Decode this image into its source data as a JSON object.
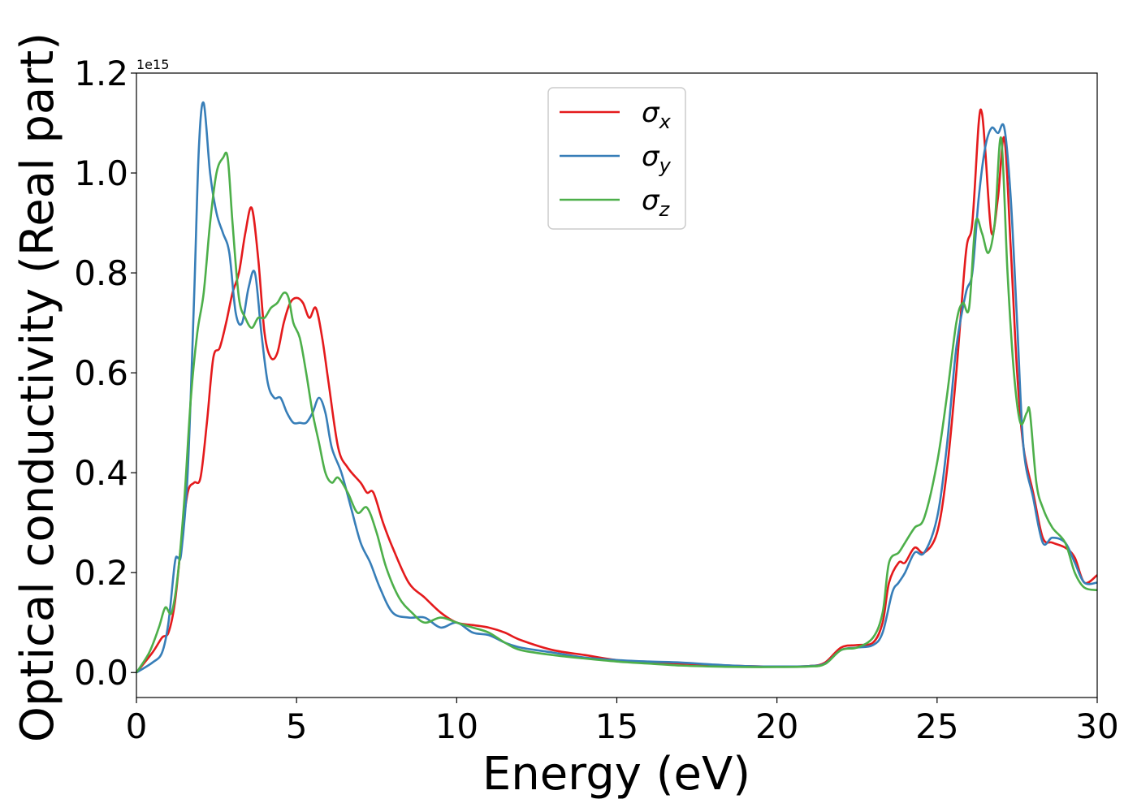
{
  "chart_data": {
    "type": "line",
    "xlabel": "Energy (eV)",
    "ylabel": "Optical conductivity (Real part)",
    "y_offset_label": "1e15",
    "xlim": [
      0,
      30
    ],
    "ylim": [
      -0.05,
      1.2
    ],
    "xticks": [
      0,
      5,
      10,
      15,
      20,
      25,
      30
    ],
    "xtick_labels": [
      "0",
      "5",
      "10",
      "15",
      "20",
      "25",
      "30"
    ],
    "yticks": [
      0.0,
      0.2,
      0.4,
      0.6,
      0.8,
      1.0,
      1.2
    ],
    "ytick_labels": [
      "0.0",
      "0.2",
      "0.4",
      "0.6",
      "0.8",
      "1.0",
      "1.2"
    ],
    "grid": false,
    "legend_position": "top-center",
    "series": [
      {
        "name": "σx",
        "legend": {
          "base": "σ",
          "sub": "x"
        },
        "color": "#e41a1c",
        "x": [
          0,
          0.5,
          0.8,
          1.0,
          1.2,
          1.4,
          1.6,
          1.8,
          2.0,
          2.2,
          2.4,
          2.6,
          2.8,
          3.0,
          3.2,
          3.4,
          3.6,
          3.8,
          4.0,
          4.2,
          4.4,
          4.6,
          4.8,
          5.0,
          5.2,
          5.4,
          5.6,
          5.8,
          6.0,
          6.3,
          6.6,
          7.0,
          7.2,
          7.4,
          7.7,
          8.0,
          8.5,
          9.0,
          9.5,
          10.0,
          10.5,
          11.0,
          11.5,
          12.0,
          13.0,
          14.0,
          15.0,
          16.0,
          17.0,
          18.0,
          19.0,
          20.0,
          21.0,
          21.5,
          22.0,
          22.5,
          23.0,
          23.3,
          23.5,
          23.8,
          24.0,
          24.3,
          24.6,
          25.0,
          25.3,
          25.6,
          25.9,
          26.1,
          26.3,
          26.4,
          26.5,
          26.7,
          26.9,
          27.1,
          27.3,
          27.5,
          27.7,
          28.0,
          28.3,
          28.6,
          29.0,
          29.3,
          29.6,
          30.0
        ],
        "values": [
          0.0,
          0.04,
          0.07,
          0.08,
          0.14,
          0.26,
          0.36,
          0.38,
          0.39,
          0.5,
          0.63,
          0.65,
          0.7,
          0.76,
          0.8,
          0.88,
          0.93,
          0.83,
          0.68,
          0.63,
          0.64,
          0.7,
          0.74,
          0.75,
          0.74,
          0.71,
          0.73,
          0.67,
          0.58,
          0.45,
          0.41,
          0.38,
          0.36,
          0.36,
          0.3,
          0.25,
          0.18,
          0.15,
          0.12,
          0.1,
          0.095,
          0.09,
          0.08,
          0.065,
          0.045,
          0.035,
          0.025,
          0.02,
          0.018,
          0.015,
          0.013,
          0.012,
          0.013,
          0.02,
          0.05,
          0.055,
          0.06,
          0.1,
          0.18,
          0.22,
          0.22,
          0.25,
          0.24,
          0.28,
          0.4,
          0.6,
          0.84,
          0.9,
          1.1,
          1.12,
          1.05,
          0.88,
          0.95,
          1.07,
          0.85,
          0.6,
          0.45,
          0.36,
          0.27,
          0.26,
          0.25,
          0.23,
          0.18,
          0.195
        ]
      },
      {
        "name": "σy",
        "legend": {
          "base": "σ",
          "sub": "y"
        },
        "color": "#377eb8",
        "x": [
          0,
          0.5,
          0.8,
          1.0,
          1.2,
          1.3,
          1.4,
          1.6,
          1.8,
          1.95,
          2.1,
          2.3,
          2.5,
          2.7,
          2.9,
          3.1,
          3.3,
          3.5,
          3.7,
          3.9,
          4.1,
          4.3,
          4.5,
          4.7,
          4.9,
          5.1,
          5.3,
          5.5,
          5.7,
          5.9,
          6.1,
          6.4,
          6.7,
          7.0,
          7.3,
          7.6,
          8.0,
          8.5,
          9.0,
          9.5,
          10.0,
          10.5,
          11.0,
          11.5,
          12.0,
          13.0,
          14.0,
          15.0,
          16.0,
          17.0,
          18.0,
          19.0,
          20.0,
          21.0,
          21.5,
          22.0,
          22.5,
          23.0,
          23.3,
          23.6,
          23.8,
          24.0,
          24.3,
          24.6,
          25.0,
          25.3,
          25.6,
          25.9,
          26.1,
          26.3,
          26.5,
          26.7,
          26.9,
          27.1,
          27.3,
          27.5,
          27.7,
          28.0,
          28.3,
          28.6,
          29.0,
          29.3,
          29.6,
          30.0
        ],
        "values": [
          0.0,
          0.02,
          0.04,
          0.1,
          0.22,
          0.23,
          0.24,
          0.4,
          0.75,
          1.05,
          1.14,
          1.0,
          0.92,
          0.88,
          0.84,
          0.72,
          0.7,
          0.77,
          0.8,
          0.68,
          0.58,
          0.55,
          0.55,
          0.52,
          0.5,
          0.5,
          0.5,
          0.52,
          0.55,
          0.52,
          0.45,
          0.4,
          0.33,
          0.26,
          0.22,
          0.17,
          0.12,
          0.11,
          0.11,
          0.09,
          0.1,
          0.08,
          0.075,
          0.06,
          0.05,
          0.04,
          0.03,
          0.025,
          0.022,
          0.02,
          0.016,
          0.013,
          0.012,
          0.013,
          0.018,
          0.045,
          0.05,
          0.055,
          0.08,
          0.16,
          0.18,
          0.2,
          0.24,
          0.24,
          0.31,
          0.45,
          0.65,
          0.76,
          0.8,
          0.95,
          1.05,
          1.09,
          1.08,
          1.09,
          0.95,
          0.7,
          0.45,
          0.35,
          0.26,
          0.27,
          0.26,
          0.22,
          0.18,
          0.18
        ]
      },
      {
        "name": "σz",
        "legend": {
          "base": "σ",
          "sub": "z"
        },
        "color": "#4daf4a",
        "x": [
          0,
          0.4,
          0.7,
          0.9,
          1.1,
          1.3,
          1.5,
          1.7,
          1.9,
          2.1,
          2.3,
          2.5,
          2.7,
          2.85,
          3.0,
          3.2,
          3.4,
          3.6,
          3.8,
          4.0,
          4.2,
          4.4,
          4.6,
          4.75,
          4.9,
          5.1,
          5.3,
          5.5,
          5.7,
          5.9,
          6.1,
          6.3,
          6.6,
          6.9,
          7.2,
          7.5,
          7.8,
          8.2,
          8.6,
          9.0,
          9.5,
          10.0,
          10.5,
          11.0,
          11.5,
          12.0,
          13.0,
          14.0,
          15.0,
          16.0,
          17.0,
          18.0,
          19.0,
          20.0,
          21.0,
          21.5,
          22.0,
          22.5,
          23.0,
          23.3,
          23.5,
          23.8,
          24.0,
          24.3,
          24.6,
          25.0,
          25.3,
          25.6,
          25.8,
          26.0,
          26.2,
          26.4,
          26.6,
          26.8,
          27.0,
          27.2,
          27.4,
          27.6,
          27.8,
          27.9,
          28.1,
          28.3,
          28.6,
          29.0,
          29.3,
          29.6,
          30.0
        ],
        "values": [
          0.0,
          0.04,
          0.09,
          0.13,
          0.12,
          0.2,
          0.35,
          0.55,
          0.68,
          0.76,
          0.9,
          1.0,
          1.03,
          1.03,
          0.9,
          0.75,
          0.71,
          0.69,
          0.71,
          0.71,
          0.73,
          0.74,
          0.76,
          0.75,
          0.7,
          0.67,
          0.6,
          0.52,
          0.46,
          0.4,
          0.38,
          0.39,
          0.36,
          0.32,
          0.33,
          0.28,
          0.21,
          0.15,
          0.12,
          0.1,
          0.11,
          0.1,
          0.09,
          0.08,
          0.06,
          0.045,
          0.035,
          0.028,
          0.022,
          0.018,
          0.014,
          0.012,
          0.011,
          0.011,
          0.012,
          0.017,
          0.045,
          0.05,
          0.07,
          0.12,
          0.22,
          0.24,
          0.26,
          0.29,
          0.31,
          0.42,
          0.55,
          0.7,
          0.74,
          0.73,
          0.9,
          0.88,
          0.84,
          0.9,
          1.07,
          0.8,
          0.6,
          0.5,
          0.52,
          0.52,
          0.38,
          0.33,
          0.29,
          0.26,
          0.2,
          0.17,
          0.165
        ]
      }
    ]
  }
}
